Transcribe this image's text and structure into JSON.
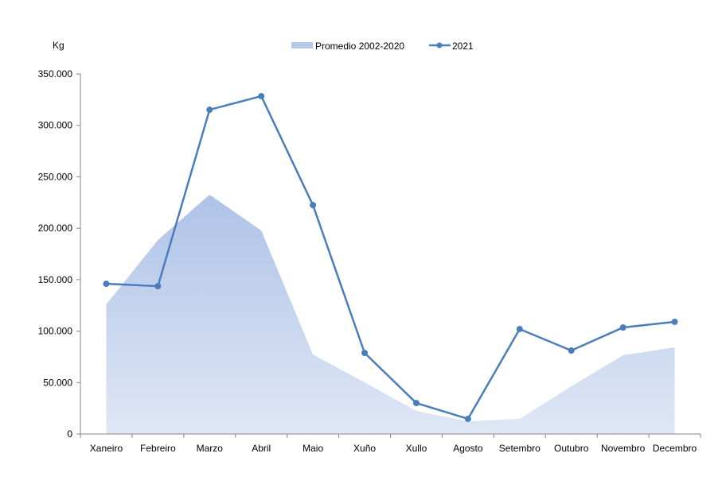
{
  "chart_data": {
    "type": "area+line",
    "title": "",
    "ylabel": "Kg",
    "xlabel": "",
    "ylim": [
      0,
      350000
    ],
    "yticks": [
      0,
      50000,
      100000,
      150000,
      200000,
      250000,
      300000,
      350000
    ],
    "ytick_labels": [
      "0",
      "50.000",
      "100.000",
      "150.000",
      "200.000",
      "250.000",
      "300.000",
      "350.000"
    ],
    "categories": [
      "Xaneiro",
      "Febreiro",
      "Marzo",
      "Abril",
      "Maio",
      "Xuño",
      "Xullo",
      "Agosto",
      "Setembro",
      "Outubro",
      "Novembro",
      "Decembro"
    ],
    "legend_position": "top",
    "grid": false,
    "series": [
      {
        "name": "Promedio 2002-2020",
        "type": "area",
        "color": "#b4c7e7",
        "values": [
          126000,
          188500,
          232600,
          197800,
          77300,
          50200,
          22400,
          12400,
          14700,
          46400,
          76500,
          84200
        ]
      },
      {
        "name": "2021",
        "type": "line",
        "color": "#4a7ebb",
        "values": [
          146000,
          143700,
          315200,
          328400,
          222500,
          78800,
          30100,
          14700,
          102000,
          81100,
          103500,
          109000
        ]
      }
    ]
  }
}
